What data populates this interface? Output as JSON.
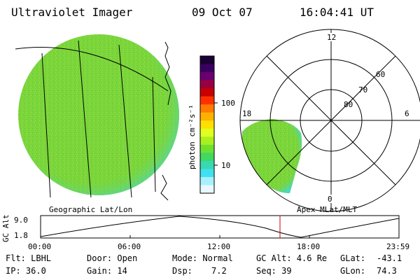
{
  "header": {
    "instrument": "Ultraviolet Imager",
    "date": "09 Oct 07",
    "time": "16:04:41 UT"
  },
  "colorbar": {
    "unit_label": "photon cm⁻²s⁻¹",
    "ticks": [
      "100",
      "10"
    ],
    "colors": [
      "#1a0033",
      "#3a0060",
      "#6a0070",
      "#9a0040",
      "#c80000",
      "#ff3000",
      "#ff7a00",
      "#ffb000",
      "#ffe000",
      "#e0ff20",
      "#a8f020",
      "#70e030",
      "#40d860",
      "#38d8b0",
      "#40e0f0",
      "#a8f0ff",
      "#e8f8ff"
    ]
  },
  "left_map": {
    "caption": "Geographic Lat/Lon",
    "fill": "#7ad53a",
    "fill_edge": "#46d8c8"
  },
  "right_map": {
    "caption": "Apex MLat/MLT",
    "mlt_labels": {
      "top": "12",
      "left": "18",
      "right": "6",
      "bottom": "0"
    },
    "mlat_labels": [
      "60",
      "70",
      "80"
    ]
  },
  "orbit_plot": {
    "ylabel": "GC Alt",
    "ytick_top": "9.0",
    "ytick_bottom": "1.8",
    "xticks": [
      "00:00",
      "06:00",
      "12:00",
      "18:00",
      "23:59"
    ],
    "marker_color": "#cc0000"
  },
  "status": {
    "filter": "Flt: LBHL",
    "ip": "IP: 36.0",
    "door": "Door: Open",
    "gain": "Gain: 14",
    "mode": "Mode: Normal",
    "dsp_label": "Dsp:",
    "dsp_value": "7.2",
    "gc_alt": "GC Alt: 4.6 Re",
    "seq": "Seq: 39",
    "glat_label": "GLat:",
    "glat_value": "-43.1",
    "glon_label": "GLon:",
    "glon_value": "74.3"
  }
}
